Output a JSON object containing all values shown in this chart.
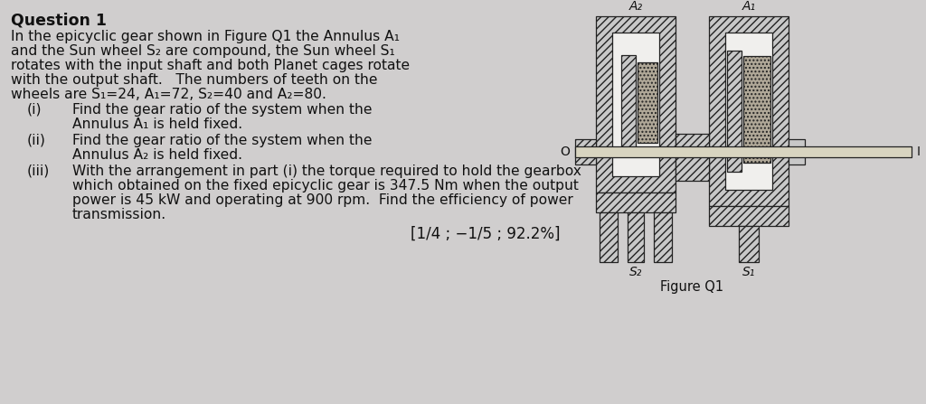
{
  "bg_color": "#d0cece",
  "title": "Question 1",
  "body_lines": [
    "In the epicyclic gear shown in Figure Q1 the Annulus A₁",
    "and the Sun wheel S₂ are compound, the Sun wheel S₁",
    "rotates with the input shaft and both Planet cages rotate",
    "with the output shaft.   The numbers of teeth on the",
    "wheels are S₁=24, A₁=72, S₂=40 and A₂=80."
  ],
  "items": [
    {
      "label": "(i)",
      "lines": [
        "Find the gear ratio of the system when the",
        "Annulus A₁ is held fixed."
      ]
    },
    {
      "label": "(ii)",
      "lines": [
        "Find the gear ratio of the system when the",
        "Annulus A₂ is held fixed."
      ]
    },
    {
      "label": "(iii)",
      "lines": [
        "With the arrangement in part (i) the torque required to hold the gearbox",
        "which obtained on the fixed epicyclic gear is 347.5 Nm when the output",
        "power is 45 kW and operating at 900 rpm.  Find the efficiency of power",
        "transmission."
      ]
    }
  ],
  "answer": "[1/4 ; −1/5 ; 92.2%]",
  "figure_label": "Figure Q1",
  "diagram_labels": {
    "A2": "A₂",
    "A1": "A₁",
    "S2": "S₂",
    "S1": "S₁",
    "O": "O",
    "I": "I"
  }
}
